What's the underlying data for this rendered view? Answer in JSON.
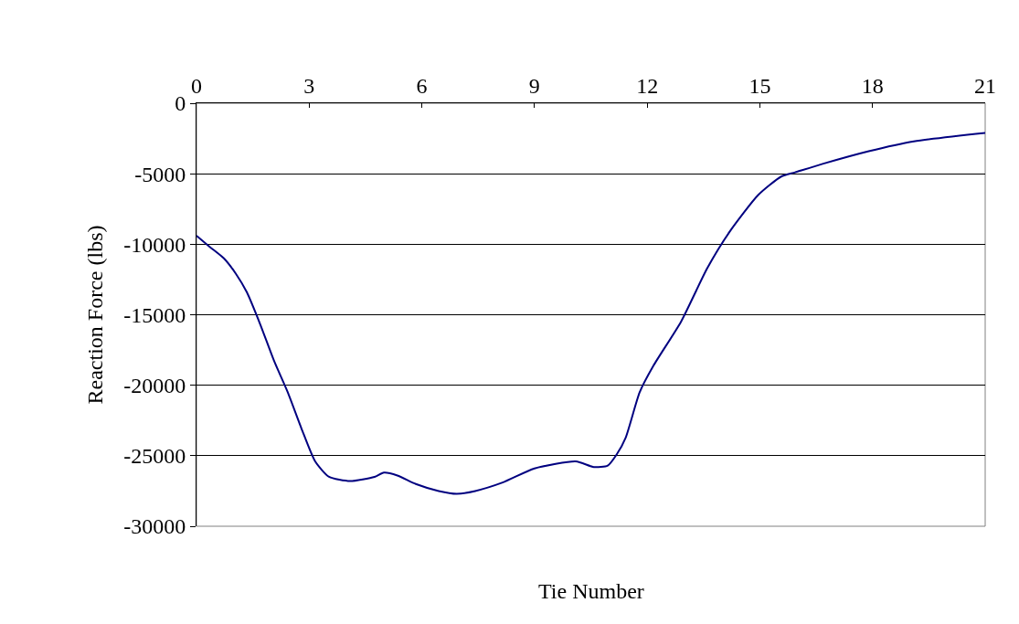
{
  "chart_data": {
    "type": "line",
    "xlabel": "Tie Number",
    "ylabel": "Reaction Force (lbs)",
    "x": [
      0,
      0.36,
      0.73,
      1.05,
      1.34,
      1.7,
      2.07,
      2.43,
      2.8,
      3.16,
      3.53,
      4.09,
      4.74,
      4.99,
      5.35,
      5.84,
      6.45,
      6.93,
      7.42,
      8.15,
      9.0,
      10.1,
      10.58,
      10.95,
      11.19,
      11.43,
      11.8,
      12.17,
      12.9,
      13.6,
      14.2,
      14.96,
      15.57,
      15.94,
      16.67,
      17.9,
      19.1,
      21
    ],
    "series": [
      {
        "color": "#000080",
        "values": [
          -9400,
          -10200,
          -11000,
          -12100,
          -13400,
          -15700,
          -18300,
          -20500,
          -23100,
          -25400,
          -26500,
          -26800,
          -26500,
          -26200,
          -26400,
          -27000,
          -27500,
          -27700,
          -27500,
          -26900,
          -25900,
          -25400,
          -25800,
          -25700,
          -24900,
          -23700,
          -20500,
          -18600,
          -15500,
          -11700,
          -9100,
          -6500,
          -5200,
          -4900,
          -4300,
          -3400,
          -2700,
          -2100
        ]
      }
    ],
    "xlim": [
      0,
      21
    ],
    "xticks": [
      0,
      3,
      6,
      9,
      12,
      15,
      18,
      21
    ],
    "ylim": [
      -30000,
      0
    ],
    "yticks": [
      -30000,
      -25000,
      -20000,
      -15000,
      -10000,
      -5000,
      0
    ],
    "grid": "y",
    "legend": false,
    "marker": "none",
    "line_style": "solid"
  }
}
